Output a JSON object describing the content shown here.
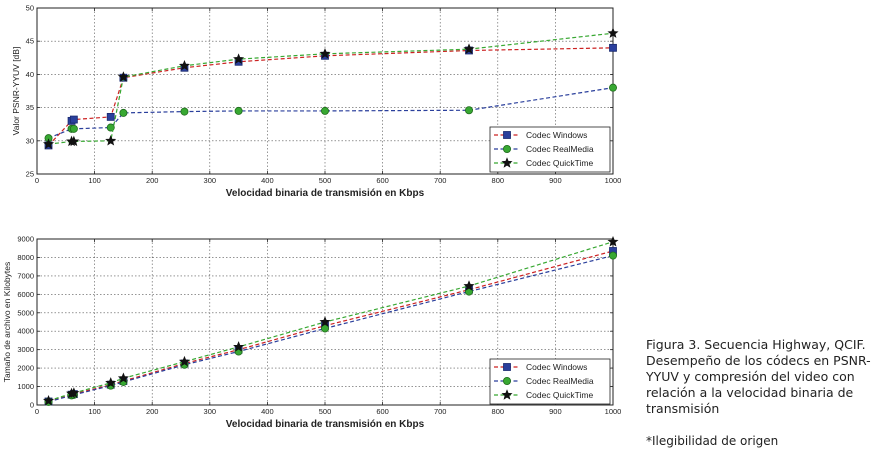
{
  "caption": "Figura 3. Secuencia Highway, QCIF. Desempeño de los códecs en PSNR-YYUV y compresión del video con relación a la velocidad binaria de transmisión",
  "note": "*Ilegibilidad de origen",
  "chart_data": [
    {
      "type": "line",
      "xlabel": "Velocidad binaria de transmisión en Kbps",
      "ylabel": "Valor PSNR-YYUV [dB]",
      "xlim": [
        0,
        1000
      ],
      "ylim": [
        25,
        50
      ],
      "xticks": [
        0,
        100,
        200,
        300,
        400,
        500,
        600,
        700,
        800,
        900,
        1000
      ],
      "yticks": [
        25,
        30,
        35,
        40,
        45,
        50
      ],
      "grid": true,
      "legend_position": "bottom-right",
      "x": [
        20,
        60,
        64,
        128,
        150,
        256,
        350,
        500,
        750,
        1000
      ],
      "series": [
        {
          "name": "Codec Windows",
          "color": "#cc2222",
          "marker": "square",
          "marker_color": "#2a3f9c",
          "values": [
            29.3,
            33.0,
            33.2,
            33.6,
            39.5,
            41.0,
            41.9,
            42.8,
            43.6,
            44.0
          ]
        },
        {
          "name": "Codec RealMedia",
          "color": "#2a3f9c",
          "marker": "circle",
          "marker_color": "#38a832",
          "values": [
            30.4,
            31.8,
            31.8,
            32.0,
            34.2,
            34.4,
            34.5,
            34.5,
            34.6,
            38.0
          ]
        },
        {
          "name": "Codec QuickTime",
          "color": "#38a832",
          "marker": "star",
          "marker_color": "#111111",
          "values": [
            29.5,
            29.9,
            29.9,
            30.0,
            39.6,
            41.3,
            42.3,
            43.1,
            43.8,
            46.2
          ]
        }
      ]
    },
    {
      "type": "line",
      "xlabel": "Velocidad binaria de transmisión en Kbps",
      "ylabel": "Tamaño de archivo en Kilobytes",
      "xlim": [
        0,
        1000
      ],
      "ylim": [
        0,
        9000
      ],
      "xticks": [
        0,
        100,
        200,
        300,
        400,
        500,
        600,
        700,
        800,
        900,
        1000
      ],
      "yticks": [
        0,
        1000,
        2000,
        3000,
        4000,
        5000,
        6000,
        7000,
        8000,
        9000
      ],
      "grid": true,
      "legend_position": "bottom-right",
      "x": [
        20,
        60,
        64,
        128,
        150,
        256,
        350,
        500,
        750,
        1000
      ],
      "series": [
        {
          "name": "Codec Windows",
          "color": "#cc2222",
          "marker": "square",
          "marker_color": "#2a3f9c",
          "values": [
            190,
            560,
            590,
            1100,
            1300,
            2250,
            3000,
            4300,
            6250,
            8350
          ]
        },
        {
          "name": "Codec RealMedia",
          "color": "#2a3f9c",
          "marker": "circle",
          "marker_color": "#38a832",
          "values": [
            170,
            520,
            550,
            1050,
            1250,
            2180,
            2900,
            4150,
            6150,
            8100
          ]
        },
        {
          "name": "Codec QuickTime",
          "color": "#38a832",
          "marker": "star",
          "marker_color": "#111111",
          "values": [
            230,
            620,
            650,
            1200,
            1450,
            2350,
            3150,
            4500,
            6450,
            8850
          ]
        }
      ]
    }
  ]
}
